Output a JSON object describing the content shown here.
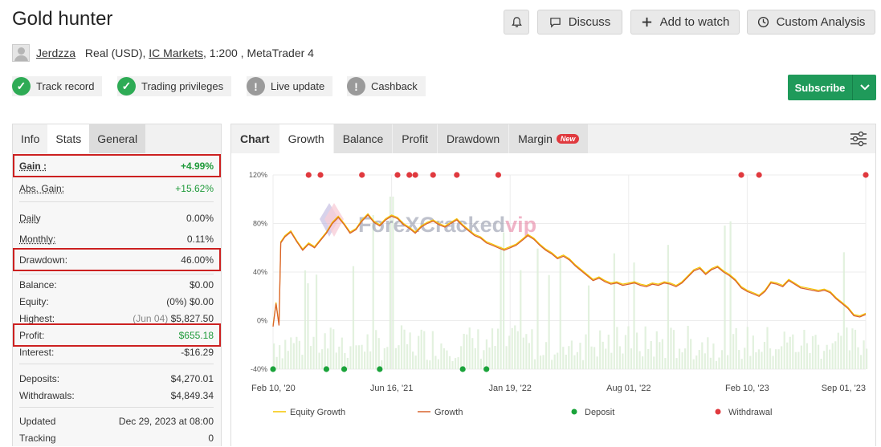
{
  "header": {
    "title": "Gold hunter",
    "buttons": {
      "discuss": "Discuss",
      "add_to_watch": "Add to watch",
      "custom_analysis": "Custom Analysis"
    }
  },
  "account": {
    "user": "Jerdzza",
    "type": "Real (USD),",
    "broker": "IC Markets",
    "details": ", 1:200 , MetaTrader 4"
  },
  "badges": [
    {
      "label": "Track record",
      "status": "ok"
    },
    {
      "label": "Trading privileges",
      "status": "ok"
    },
    {
      "label": "Live update",
      "status": "warn"
    },
    {
      "label": "Cashback",
      "status": "warn"
    }
  ],
  "subscribe_label": "Subscribe",
  "left_tabs": [
    "Info",
    "Stats",
    "General"
  ],
  "stats": {
    "gain": {
      "label": "Gain :",
      "value": "+4.99%"
    },
    "abs_gain": {
      "label": "Abs. Gain:",
      "value": "+15.62%"
    },
    "daily": {
      "label": "Daily",
      "value": "0.00%"
    },
    "monthly": {
      "label": "Monthly:",
      "value": "0.11%"
    },
    "drawdown": {
      "label": "Drawdown:",
      "value": "46.00%"
    },
    "balance": {
      "label": "Balance:",
      "value": "$0.00"
    },
    "equity": {
      "label": "Equity:",
      "prefix": "(0%)",
      "value": "$0.00"
    },
    "highest": {
      "label": "Highest:",
      "prefix": "(Jun 04)",
      "value": "$5,827.50"
    },
    "profit": {
      "label": "Profit:",
      "value": "$655.18"
    },
    "interest": {
      "label": "Interest:",
      "value": "-$16.29"
    },
    "deposits": {
      "label": "Deposits:",
      "value": "$4,270.01"
    },
    "withdrawals": {
      "label": "Withdrawals:",
      "value": "$4,849.34"
    },
    "updated": {
      "label": "Updated",
      "value": "Dec 29, 2023 at 08:00"
    },
    "tracking": {
      "label": "Tracking",
      "value": "0"
    }
  },
  "chart_tabs": {
    "chart": "Chart",
    "growth": "Growth",
    "balance": "Balance",
    "profit": "Profit",
    "drawdown": "Drawdown",
    "margin": "Margin",
    "new_tag": "New"
  },
  "watermark": {
    "text_a": "ForeXCracked",
    "text_b": "vip"
  },
  "colors": {
    "green": "#1f9a5a",
    "red_box": "#cc2020",
    "equity": "#f5c400",
    "growth": "#d9622c",
    "deposit": "#1aa33a",
    "withdrawal": "#e0393e"
  },
  "chart_data": {
    "type": "line",
    "x_ticks": [
      "Feb 10, '20",
      "Jun 16, '21",
      "Jan 19, '22",
      "Aug 01, '22",
      "Feb 10, '23",
      "Sep 01, '23"
    ],
    "y_ticks": [
      "120%",
      "80%",
      "40%",
      "0%",
      "-40%"
    ],
    "ylim": [
      -40,
      120
    ],
    "legend": [
      "Equity Growth",
      "Growth",
      "Deposit",
      "Withdrawal"
    ],
    "series": [
      {
        "name": "Growth",
        "points": [
          [
            0.0,
            -5
          ],
          [
            0.005,
            14
          ],
          [
            0.01,
            -4
          ],
          [
            0.013,
            64
          ],
          [
            0.02,
            69
          ],
          [
            0.03,
            73
          ],
          [
            0.04,
            65
          ],
          [
            0.05,
            58
          ],
          [
            0.06,
            63
          ],
          [
            0.07,
            60
          ],
          [
            0.08,
            66
          ],
          [
            0.09,
            72
          ],
          [
            0.1,
            80
          ],
          [
            0.11,
            85
          ],
          [
            0.12,
            79
          ],
          [
            0.13,
            72
          ],
          [
            0.14,
            75
          ],
          [
            0.15,
            82
          ],
          [
            0.16,
            87
          ],
          [
            0.17,
            81
          ],
          [
            0.18,
            78
          ],
          [
            0.19,
            83
          ],
          [
            0.2,
            86
          ],
          [
            0.21,
            84
          ],
          [
            0.22,
            79
          ],
          [
            0.23,
            76
          ],
          [
            0.24,
            72
          ],
          [
            0.25,
            77
          ],
          [
            0.26,
            80
          ],
          [
            0.27,
            82
          ],
          [
            0.28,
            79
          ],
          [
            0.29,
            77
          ],
          [
            0.3,
            80
          ],
          [
            0.31,
            83
          ],
          [
            0.32,
            78
          ],
          [
            0.33,
            74
          ],
          [
            0.34,
            70
          ],
          [
            0.35,
            68
          ],
          [
            0.36,
            64
          ],
          [
            0.37,
            62
          ],
          [
            0.38,
            60
          ],
          [
            0.39,
            58
          ],
          [
            0.4,
            60
          ],
          [
            0.41,
            62
          ],
          [
            0.42,
            66
          ],
          [
            0.43,
            70
          ],
          [
            0.44,
            67
          ],
          [
            0.45,
            62
          ],
          [
            0.46,
            58
          ],
          [
            0.47,
            55
          ],
          [
            0.48,
            51
          ],
          [
            0.49,
            53
          ],
          [
            0.5,
            50
          ],
          [
            0.51,
            45
          ],
          [
            0.52,
            41
          ],
          [
            0.53,
            37
          ],
          [
            0.54,
            33
          ],
          [
            0.55,
            35
          ],
          [
            0.56,
            32
          ],
          [
            0.57,
            30
          ],
          [
            0.58,
            31
          ],
          [
            0.59,
            29
          ],
          [
            0.6,
            30
          ],
          [
            0.61,
            31
          ],
          [
            0.62,
            29
          ],
          [
            0.63,
            28
          ],
          [
            0.64,
            30
          ],
          [
            0.65,
            29
          ],
          [
            0.66,
            31
          ],
          [
            0.67,
            30
          ],
          [
            0.68,
            28
          ],
          [
            0.69,
            31
          ],
          [
            0.7,
            36
          ],
          [
            0.71,
            41
          ],
          [
            0.72,
            43
          ],
          [
            0.73,
            38
          ],
          [
            0.74,
            42
          ],
          [
            0.75,
            44
          ],
          [
            0.76,
            40
          ],
          [
            0.77,
            37
          ],
          [
            0.78,
            33
          ],
          [
            0.79,
            27
          ],
          [
            0.8,
            24
          ],
          [
            0.81,
            22
          ],
          [
            0.82,
            20
          ],
          [
            0.83,
            24
          ],
          [
            0.84,
            31
          ],
          [
            0.85,
            30
          ],
          [
            0.86,
            28
          ],
          [
            0.87,
            33
          ],
          [
            0.88,
            30
          ],
          [
            0.89,
            27
          ],
          [
            0.9,
            26
          ],
          [
            0.91,
            25
          ],
          [
            0.92,
            24
          ],
          [
            0.93,
            25
          ],
          [
            0.94,
            23
          ],
          [
            0.95,
            18
          ],
          [
            0.96,
            14
          ],
          [
            0.97,
            10
          ],
          [
            0.98,
            4
          ],
          [
            0.99,
            3
          ],
          [
            1.0,
            5
          ]
        ]
      }
    ],
    "deposits_x": [
      0.0,
      0.09,
      0.12,
      0.18,
      0.32,
      0.36
    ],
    "withdrawals_x": [
      0.06,
      0.08,
      0.15,
      0.21,
      0.23,
      0.24,
      0.27,
      0.31,
      0.38,
      0.79,
      0.82,
      1.0
    ]
  }
}
